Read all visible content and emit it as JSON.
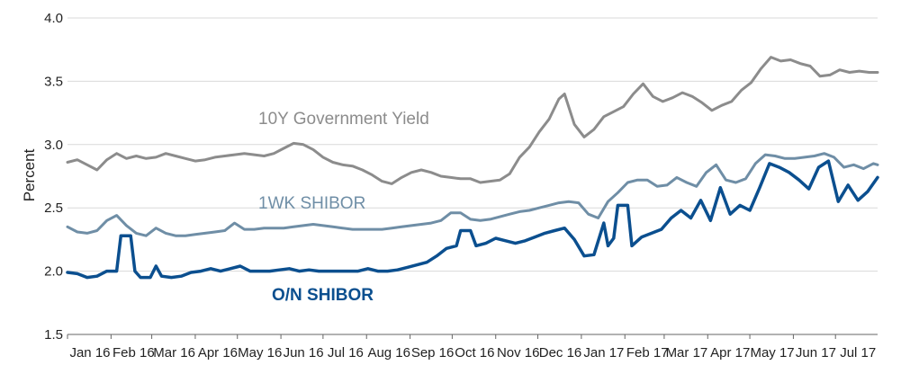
{
  "chart_data": {
    "type": "line",
    "ylabel": "Percent",
    "ylim": [
      1.5,
      4.0
    ],
    "yticks": [
      "1.5",
      "2.0",
      "2.5",
      "3.0",
      "3.5",
      "4.0"
    ],
    "x_range": [
      "2016-01-01",
      "2017-07-31"
    ],
    "xticks": [
      {
        "label": "Jan 16",
        "date": "2016-01-01"
      },
      {
        "label": "Feb 16",
        "date": "2016-02-01"
      },
      {
        "label": "Mar 16",
        "date": "2016-03-01"
      },
      {
        "label": "Apr 16",
        "date": "2016-04-01"
      },
      {
        "label": "May 16",
        "date": "2016-05-01"
      },
      {
        "label": "Jun 16",
        "date": "2016-06-01"
      },
      {
        "label": "Jul 16",
        "date": "2016-07-01"
      },
      {
        "label": "Aug 16",
        "date": "2016-08-01"
      },
      {
        "label": "Sep 16",
        "date": "2016-09-01"
      },
      {
        "label": "Oct 16",
        "date": "2016-10-01"
      },
      {
        "label": "Nov 16",
        "date": "2016-11-01"
      },
      {
        "label": "Dec 16",
        "date": "2016-12-01"
      },
      {
        "label": "Jan 17",
        "date": "2017-01-01"
      },
      {
        "label": "Feb 17",
        "date": "2017-02-01"
      },
      {
        "label": "Mar 17",
        "date": "2017-03-01"
      },
      {
        "label": "Apr 17",
        "date": "2017-04-01"
      },
      {
        "label": "May 17",
        "date": "2017-05-01"
      },
      {
        "label": "Jun 17",
        "date": "2017-06-01"
      },
      {
        "label": "Jul 17",
        "date": "2017-07-01"
      }
    ],
    "grid": true,
    "series": [
      {
        "name": "10Y Government Yield",
        "color": "#8c8c8c",
        "points": [
          [
            "2016-01-01",
            2.86
          ],
          [
            "2016-01-08",
            2.88
          ],
          [
            "2016-01-15",
            2.84
          ],
          [
            "2016-01-22",
            2.8
          ],
          [
            "2016-01-29",
            2.88
          ],
          [
            "2016-02-05",
            2.93
          ],
          [
            "2016-02-12",
            2.89
          ],
          [
            "2016-02-19",
            2.91
          ],
          [
            "2016-02-26",
            2.89
          ],
          [
            "2016-03-04",
            2.9
          ],
          [
            "2016-03-11",
            2.93
          ],
          [
            "2016-03-18",
            2.91
          ],
          [
            "2016-03-25",
            2.89
          ],
          [
            "2016-04-01",
            2.87
          ],
          [
            "2016-04-08",
            2.88
          ],
          [
            "2016-04-15",
            2.9
          ],
          [
            "2016-04-22",
            2.91
          ],
          [
            "2016-04-29",
            2.92
          ],
          [
            "2016-05-06",
            2.93
          ],
          [
            "2016-05-13",
            2.92
          ],
          [
            "2016-05-20",
            2.91
          ],
          [
            "2016-05-27",
            2.93
          ],
          [
            "2016-06-03",
            2.97
          ],
          [
            "2016-06-10",
            3.01
          ],
          [
            "2016-06-17",
            3.0
          ],
          [
            "2016-06-24",
            2.96
          ],
          [
            "2016-07-01",
            2.9
          ],
          [
            "2016-07-08",
            2.86
          ],
          [
            "2016-07-15",
            2.84
          ],
          [
            "2016-07-22",
            2.83
          ],
          [
            "2016-07-29",
            2.8
          ],
          [
            "2016-08-05",
            2.76
          ],
          [
            "2016-08-12",
            2.71
          ],
          [
            "2016-08-19",
            2.69
          ],
          [
            "2016-08-26",
            2.74
          ],
          [
            "2016-09-02",
            2.78
          ],
          [
            "2016-09-09",
            2.8
          ],
          [
            "2016-09-16",
            2.78
          ],
          [
            "2016-09-23",
            2.75
          ],
          [
            "2016-09-30",
            2.74
          ],
          [
            "2016-10-07",
            2.73
          ],
          [
            "2016-10-14",
            2.73
          ],
          [
            "2016-10-21",
            2.7
          ],
          [
            "2016-10-28",
            2.71
          ],
          [
            "2016-11-04",
            2.72
          ],
          [
            "2016-11-11",
            2.77
          ],
          [
            "2016-11-18",
            2.9
          ],
          [
            "2016-11-25",
            2.98
          ],
          [
            "2016-12-02",
            3.1
          ],
          [
            "2016-12-09",
            3.2
          ],
          [
            "2016-12-16",
            3.36
          ],
          [
            "2016-12-20",
            3.4
          ],
          [
            "2016-12-27",
            3.16
          ],
          [
            "2017-01-03",
            3.06
          ],
          [
            "2017-01-10",
            3.12
          ],
          [
            "2017-01-17",
            3.22
          ],
          [
            "2017-01-24",
            3.26
          ],
          [
            "2017-01-31",
            3.3
          ],
          [
            "2017-02-07",
            3.4
          ],
          [
            "2017-02-14",
            3.48
          ],
          [
            "2017-02-21",
            3.38
          ],
          [
            "2017-02-28",
            3.34
          ],
          [
            "2017-03-07",
            3.37
          ],
          [
            "2017-03-14",
            3.41
          ],
          [
            "2017-03-21",
            3.38
          ],
          [
            "2017-03-28",
            3.33
          ],
          [
            "2017-04-04",
            3.27
          ],
          [
            "2017-04-11",
            3.31
          ],
          [
            "2017-04-18",
            3.34
          ],
          [
            "2017-04-25",
            3.43
          ],
          [
            "2017-05-02",
            3.49
          ],
          [
            "2017-05-09",
            3.6
          ],
          [
            "2017-05-16",
            3.69
          ],
          [
            "2017-05-23",
            3.66
          ],
          [
            "2017-05-30",
            3.67
          ],
          [
            "2017-06-06",
            3.64
          ],
          [
            "2017-06-13",
            3.62
          ],
          [
            "2017-06-20",
            3.54
          ],
          [
            "2017-06-27",
            3.55
          ],
          [
            "2017-07-04",
            3.59
          ],
          [
            "2017-07-11",
            3.57
          ],
          [
            "2017-07-18",
            3.58
          ],
          [
            "2017-07-25",
            3.57
          ],
          [
            "2017-07-31",
            3.57
          ]
        ]
      },
      {
        "name": "1WK SHIBOR",
        "color": "#6f8ea6",
        "points": [
          [
            "2016-01-01",
            2.35
          ],
          [
            "2016-01-08",
            2.31
          ],
          [
            "2016-01-15",
            2.3
          ],
          [
            "2016-01-22",
            2.32
          ],
          [
            "2016-01-29",
            2.4
          ],
          [
            "2016-02-05",
            2.44
          ],
          [
            "2016-02-12",
            2.36
          ],
          [
            "2016-02-19",
            2.3
          ],
          [
            "2016-02-26",
            2.28
          ],
          [
            "2016-03-04",
            2.34
          ],
          [
            "2016-03-11",
            2.3
          ],
          [
            "2016-03-18",
            2.28
          ],
          [
            "2016-03-25",
            2.28
          ],
          [
            "2016-04-01",
            2.29
          ],
          [
            "2016-04-08",
            2.3
          ],
          [
            "2016-04-15",
            2.31
          ],
          [
            "2016-04-22",
            2.32
          ],
          [
            "2016-04-29",
            2.38
          ],
          [
            "2016-05-06",
            2.33
          ],
          [
            "2016-05-13",
            2.33
          ],
          [
            "2016-05-20",
            2.34
          ],
          [
            "2016-05-27",
            2.34
          ],
          [
            "2016-06-03",
            2.34
          ],
          [
            "2016-06-10",
            2.35
          ],
          [
            "2016-06-17",
            2.36
          ],
          [
            "2016-06-24",
            2.37
          ],
          [
            "2016-07-01",
            2.36
          ],
          [
            "2016-07-08",
            2.35
          ],
          [
            "2016-07-15",
            2.34
          ],
          [
            "2016-07-22",
            2.33
          ],
          [
            "2016-07-29",
            2.33
          ],
          [
            "2016-08-05",
            2.33
          ],
          [
            "2016-08-12",
            2.33
          ],
          [
            "2016-08-19",
            2.34
          ],
          [
            "2016-08-26",
            2.35
          ],
          [
            "2016-09-02",
            2.36
          ],
          [
            "2016-09-09",
            2.37
          ],
          [
            "2016-09-16",
            2.38
          ],
          [
            "2016-09-23",
            2.4
          ],
          [
            "2016-09-30",
            2.46
          ],
          [
            "2016-10-07",
            2.46
          ],
          [
            "2016-10-14",
            2.41
          ],
          [
            "2016-10-21",
            2.4
          ],
          [
            "2016-10-28",
            2.41
          ],
          [
            "2016-11-04",
            2.43
          ],
          [
            "2016-11-11",
            2.45
          ],
          [
            "2016-11-18",
            2.47
          ],
          [
            "2016-11-25",
            2.48
          ],
          [
            "2016-12-02",
            2.5
          ],
          [
            "2016-12-09",
            2.52
          ],
          [
            "2016-12-16",
            2.54
          ],
          [
            "2016-12-23",
            2.55
          ],
          [
            "2016-12-30",
            2.54
          ],
          [
            "2017-01-06",
            2.45
          ],
          [
            "2017-01-13",
            2.42
          ],
          [
            "2017-01-20",
            2.55
          ],
          [
            "2017-01-27",
            2.62
          ],
          [
            "2017-02-03",
            2.7
          ],
          [
            "2017-02-10",
            2.72
          ],
          [
            "2017-02-17",
            2.72
          ],
          [
            "2017-02-24",
            2.67
          ],
          [
            "2017-03-03",
            2.68
          ],
          [
            "2017-03-10",
            2.74
          ],
          [
            "2017-03-17",
            2.7
          ],
          [
            "2017-03-24",
            2.67
          ],
          [
            "2017-03-31",
            2.78
          ],
          [
            "2017-04-07",
            2.84
          ],
          [
            "2017-04-14",
            2.72
          ],
          [
            "2017-04-21",
            2.7
          ],
          [
            "2017-04-28",
            2.73
          ],
          [
            "2017-05-05",
            2.85
          ],
          [
            "2017-05-12",
            2.92
          ],
          [
            "2017-05-19",
            2.91
          ],
          [
            "2017-05-26",
            2.89
          ],
          [
            "2017-06-02",
            2.89
          ],
          [
            "2017-06-09",
            2.9
          ],
          [
            "2017-06-16",
            2.91
          ],
          [
            "2017-06-23",
            2.93
          ],
          [
            "2017-06-30",
            2.9
          ],
          [
            "2017-07-07",
            2.82
          ],
          [
            "2017-07-14",
            2.84
          ],
          [
            "2017-07-21",
            2.81
          ],
          [
            "2017-07-28",
            2.85
          ],
          [
            "2017-07-31",
            2.84
          ]
        ]
      },
      {
        "name": "O/N SHIBOR",
        "color": "#0b4f8f",
        "points": [
          [
            "2016-01-01",
            1.99
          ],
          [
            "2016-01-08",
            1.98
          ],
          [
            "2016-01-15",
            1.95
          ],
          [
            "2016-01-22",
            1.96
          ],
          [
            "2016-01-29",
            2.0
          ],
          [
            "2016-02-05",
            2.0
          ],
          [
            "2016-02-08",
            2.28
          ],
          [
            "2016-02-15",
            2.28
          ],
          [
            "2016-02-18",
            2.0
          ],
          [
            "2016-02-22",
            1.95
          ],
          [
            "2016-02-29",
            1.95
          ],
          [
            "2016-03-04",
            2.04
          ],
          [
            "2016-03-08",
            1.96
          ],
          [
            "2016-03-15",
            1.95
          ],
          [
            "2016-03-22",
            1.96
          ],
          [
            "2016-03-29",
            1.99
          ],
          [
            "2016-04-05",
            2.0
          ],
          [
            "2016-04-12",
            2.02
          ],
          [
            "2016-04-19",
            2.0
          ],
          [
            "2016-04-26",
            2.02
          ],
          [
            "2016-05-03",
            2.04
          ],
          [
            "2016-05-10",
            2.0
          ],
          [
            "2016-05-17",
            2.0
          ],
          [
            "2016-05-24",
            2.0
          ],
          [
            "2016-05-31",
            2.01
          ],
          [
            "2016-06-07",
            2.02
          ],
          [
            "2016-06-14",
            2.0
          ],
          [
            "2016-06-21",
            2.01
          ],
          [
            "2016-06-28",
            2.0
          ],
          [
            "2016-07-05",
            2.0
          ],
          [
            "2016-07-12",
            2.0
          ],
          [
            "2016-07-19",
            2.0
          ],
          [
            "2016-07-26",
            2.0
          ],
          [
            "2016-08-02",
            2.02
          ],
          [
            "2016-08-09",
            2.0
          ],
          [
            "2016-08-16",
            2.0
          ],
          [
            "2016-08-23",
            2.01
          ],
          [
            "2016-08-30",
            2.03
          ],
          [
            "2016-09-06",
            2.05
          ],
          [
            "2016-09-13",
            2.07
          ],
          [
            "2016-09-20",
            2.12
          ],
          [
            "2016-09-27",
            2.18
          ],
          [
            "2016-10-04",
            2.2
          ],
          [
            "2016-10-07",
            2.32
          ],
          [
            "2016-10-14",
            2.32
          ],
          [
            "2016-10-18",
            2.2
          ],
          [
            "2016-10-25",
            2.22
          ],
          [
            "2016-11-01",
            2.26
          ],
          [
            "2016-11-08",
            2.24
          ],
          [
            "2016-11-15",
            2.22
          ],
          [
            "2016-11-22",
            2.24
          ],
          [
            "2016-11-29",
            2.27
          ],
          [
            "2016-12-06",
            2.3
          ],
          [
            "2016-12-13",
            2.32
          ],
          [
            "2016-12-20",
            2.34
          ],
          [
            "2016-12-27",
            2.25
          ],
          [
            "2017-01-03",
            2.12
          ],
          [
            "2017-01-10",
            2.13
          ],
          [
            "2017-01-17",
            2.38
          ],
          [
            "2017-01-20",
            2.2
          ],
          [
            "2017-01-24",
            2.26
          ],
          [
            "2017-01-27",
            2.52
          ],
          [
            "2017-02-03",
            2.52
          ],
          [
            "2017-02-06",
            2.2
          ],
          [
            "2017-02-13",
            2.27
          ],
          [
            "2017-02-20",
            2.3
          ],
          [
            "2017-02-27",
            2.33
          ],
          [
            "2017-03-06",
            2.42
          ],
          [
            "2017-03-13",
            2.48
          ],
          [
            "2017-03-20",
            2.42
          ],
          [
            "2017-03-27",
            2.56
          ],
          [
            "2017-04-03",
            2.4
          ],
          [
            "2017-04-10",
            2.66
          ],
          [
            "2017-04-17",
            2.45
          ],
          [
            "2017-04-24",
            2.52
          ],
          [
            "2017-05-01",
            2.48
          ],
          [
            "2017-05-08",
            2.66
          ],
          [
            "2017-05-15",
            2.85
          ],
          [
            "2017-05-22",
            2.82
          ],
          [
            "2017-05-29",
            2.78
          ],
          [
            "2017-06-05",
            2.72
          ],
          [
            "2017-06-12",
            2.65
          ],
          [
            "2017-06-19",
            2.82
          ],
          [
            "2017-06-26",
            2.87
          ],
          [
            "2017-07-03",
            2.55
          ],
          [
            "2017-07-10",
            2.68
          ],
          [
            "2017-07-17",
            2.56
          ],
          [
            "2017-07-24",
            2.63
          ],
          [
            "2017-07-31",
            2.74
          ]
        ]
      }
    ]
  }
}
